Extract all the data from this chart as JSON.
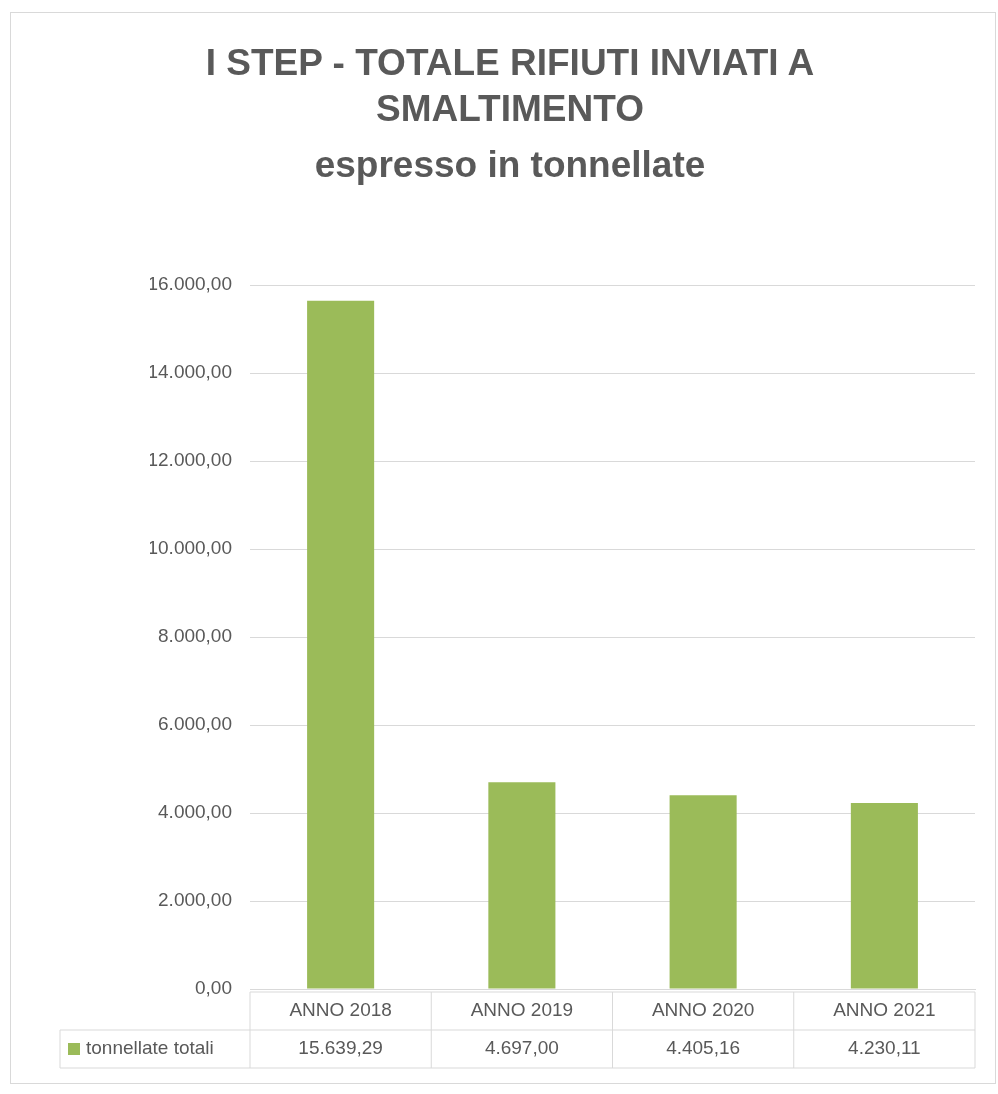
{
  "chart_data": {
    "type": "bar",
    "title": "I STEP - TOTALE RIFIUTI INVIATI A SMALTIMENTO",
    "subtitle": "espresso in tonnellate",
    "categories": [
      "ANNO 2018",
      "ANNO 2019",
      "ANNO 2020",
      "ANNO 2021"
    ],
    "series": [
      {
        "name": "tonnellate totali",
        "color": "#9bbb59",
        "values": [
          15639.29,
          4697.0,
          4405.16,
          4230.11
        ],
        "value_labels": [
          "15.639,29",
          "4.697,00",
          "4.405,16",
          "4.230,11"
        ]
      }
    ],
    "ylim": [
      0,
      16000
    ],
    "yticks": [
      {
        "value": 0,
        "label": "0,00"
      },
      {
        "value": 2000,
        "label": "2.000,00"
      },
      {
        "value": 4000,
        "label": "4.000,00"
      },
      {
        "value": 6000,
        "label": "6.000,00"
      },
      {
        "value": 8000,
        "label": "8.000,00"
      },
      {
        "value": 10000,
        "label": "10.000,00"
      },
      {
        "value": 12000,
        "label": "12.000,00"
      },
      {
        "value": 14000,
        "label": "14.000,00"
      },
      {
        "value": 16000,
        "label": "16.000,00"
      }
    ],
    "grid": "y",
    "legend": "bottom"
  }
}
